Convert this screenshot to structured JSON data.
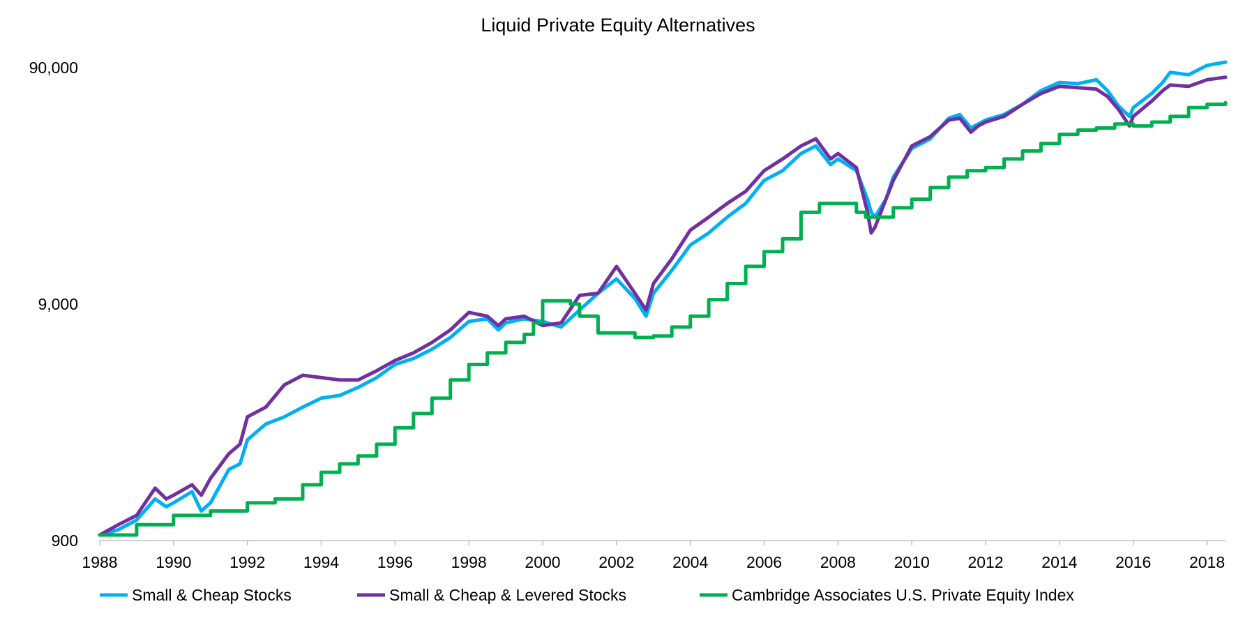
{
  "chart_data": {
    "type": "line",
    "title": "Liquid Private Equity Alternatives",
    "xlabel": "",
    "ylabel": "",
    "y_scale": "log",
    "ylim": [
      900,
      90000
    ],
    "xlim": [
      1988,
      2018.5
    ],
    "x_ticks": [
      "1988",
      "1990",
      "1992",
      "1994",
      "1996",
      "1998",
      "2000",
      "2002",
      "2004",
      "2006",
      "2008",
      "2010",
      "2012",
      "2014",
      "2016",
      "2018"
    ],
    "y_ticks": [
      "900",
      "9,000",
      "90,000"
    ],
    "grid": false,
    "legend_position": "bottom",
    "series": [
      {
        "name": "Small & Cheap Stocks",
        "color": "#00B0F0",
        "x": [
          1988.0,
          1988.5,
          1989.0,
          1989.5,
          1989.8,
          1990.0,
          1990.5,
          1990.75,
          1991.0,
          1991.5,
          1991.8,
          1992.0,
          1992.5,
          1993.0,
          1993.5,
          1994.0,
          1994.5,
          1995.0,
          1995.5,
          1996.0,
          1996.5,
          1997.0,
          1997.5,
          1998.0,
          1998.5,
          1998.8,
          1999.0,
          1999.5,
          2000.0,
          2000.5,
          2001.0,
          2001.5,
          2002.0,
          2002.5,
          2002.8,
          2003.0,
          2003.5,
          2004.0,
          2004.5,
          2005.0,
          2005.5,
          2006.0,
          2006.5,
          2007.0,
          2007.4,
          2007.8,
          2008.0,
          2008.5,
          2008.8,
          2008.9,
          2009.0,
          2009.3,
          2009.5,
          2010.0,
          2010.5,
          2011.0,
          2011.3,
          2011.6,
          2011.8,
          2012.0,
          2012.5,
          2013.0,
          2013.5,
          2014.0,
          2014.5,
          2015.0,
          2015.3,
          2015.6,
          2015.9,
          2016.0,
          2016.5,
          2016.8,
          2017.0,
          2017.5,
          2018.0,
          2018.5
        ],
        "y": [
          950,
          1000,
          1100,
          1350,
          1250,
          1300,
          1450,
          1200,
          1300,
          1800,
          1900,
          2400,
          2800,
          3000,
          3300,
          3600,
          3700,
          4000,
          4400,
          5000,
          5300,
          5800,
          6500,
          7600,
          7800,
          7000,
          7500,
          7800,
          7600,
          7200,
          8500,
          10000,
          11500,
          9500,
          8000,
          10000,
          12500,
          16000,
          18000,
          21000,
          24000,
          30000,
          33000,
          39000,
          42000,
          35000,
          37000,
          33000,
          25000,
          22000,
          21000,
          25000,
          31000,
          41000,
          45000,
          55000,
          57000,
          50000,
          52000,
          54000,
          57000,
          63000,
          72000,
          78000,
          77000,
          80000,
          72000,
          62000,
          56000,
          61000,
          70000,
          78000,
          86000,
          84000,
          92000,
          95000
        ]
      },
      {
        "name": "Small & Cheap & Levered Stocks",
        "color": "#7030A0",
        "x": [
          1988.0,
          1988.5,
          1989.0,
          1989.5,
          1989.8,
          1990.0,
          1990.5,
          1990.75,
          1991.0,
          1991.5,
          1991.8,
          1992.0,
          1992.5,
          1993.0,
          1993.5,
          1994.0,
          1994.5,
          1995.0,
          1995.5,
          1996.0,
          1996.5,
          1997.0,
          1997.5,
          1998.0,
          1998.5,
          1998.8,
          1999.0,
          1999.5,
          2000.0,
          2000.5,
          2001.0,
          2001.5,
          2002.0,
          2002.5,
          2002.8,
          2003.0,
          2003.5,
          2004.0,
          2004.5,
          2005.0,
          2005.5,
          2006.0,
          2006.5,
          2007.0,
          2007.4,
          2007.8,
          2008.0,
          2008.5,
          2008.8,
          2008.9,
          2009.0,
          2009.3,
          2009.5,
          2010.0,
          2010.5,
          2011.0,
          2011.3,
          2011.6,
          2011.8,
          2012.0,
          2012.5,
          2013.0,
          2013.5,
          2014.0,
          2014.5,
          2015.0,
          2015.3,
          2015.6,
          2015.9,
          2016.0,
          2016.5,
          2016.8,
          2017.0,
          2017.5,
          2018.0,
          2018.5
        ],
        "y": [
          950,
          1050,
          1150,
          1500,
          1350,
          1400,
          1550,
          1400,
          1650,
          2100,
          2300,
          3000,
          3300,
          4100,
          4500,
          4400,
          4300,
          4300,
          4700,
          5200,
          5600,
          6200,
          7000,
          8300,
          8000,
          7300,
          7800,
          8000,
          7300,
          7500,
          9800,
          10000,
          13000,
          10000,
          8500,
          11000,
          14000,
          18500,
          21000,
          24000,
          27000,
          33000,
          37000,
          42000,
          45000,
          37000,
          39000,
          34000,
          22000,
          18000,
          19000,
          25000,
          30000,
          42000,
          46000,
          54000,
          55000,
          48000,
          51000,
          53000,
          56000,
          63000,
          70000,
          75000,
          74000,
          73000,
          68000,
          60000,
          51000,
          56000,
          65000,
          72000,
          76000,
          75000,
          80000,
          82000
        ]
      },
      {
        "name": "Cambridge Associates U.S. Private Equity Index",
        "color": "#00B050",
        "step": true,
        "x": [
          1988.0,
          1989.0,
          1990.0,
          1991.0,
          1992.0,
          1992.75,
          1993.5,
          1994.0,
          1994.5,
          1995.0,
          1995.5,
          1996.0,
          1996.5,
          1997.0,
          1997.5,
          1998.0,
          1998.5,
          1999.0,
          1999.5,
          1999.75,
          2000.0,
          2000.75,
          2001.0,
          2001.5,
          2002.5,
          2003.0,
          2003.5,
          2004.0,
          2004.5,
          2005.0,
          2005.5,
          2006.0,
          2006.5,
          2007.0,
          2007.5,
          2008.0,
          2008.5,
          2008.75,
          2009.0,
          2009.5,
          2010.0,
          2010.5,
          2011.0,
          2011.5,
          2012.0,
          2012.5,
          2013.0,
          2013.5,
          2014.0,
          2014.5,
          2015.0,
          2015.5,
          2016.0,
          2016.5,
          2017.0,
          2017.5,
          2018.0,
          2018.5
        ],
        "y": [
          950,
          1050,
          1150,
          1200,
          1300,
          1350,
          1550,
          1750,
          1900,
          2050,
          2300,
          2700,
          3100,
          3600,
          4300,
          5000,
          5600,
          6200,
          6700,
          7500,
          9300,
          9000,
          8000,
          6800,
          6500,
          6600,
          7200,
          8000,
          9400,
          11000,
          13000,
          15000,
          17000,
          22000,
          24000,
          24000,
          22000,
          21000,
          21000,
          23000,
          25000,
          28000,
          31000,
          33000,
          34000,
          37000,
          40000,
          43000,
          47000,
          49000,
          50000,
          52000,
          51000,
          53000,
          56000,
          61000,
          63000,
          64000
        ]
      }
    ]
  }
}
